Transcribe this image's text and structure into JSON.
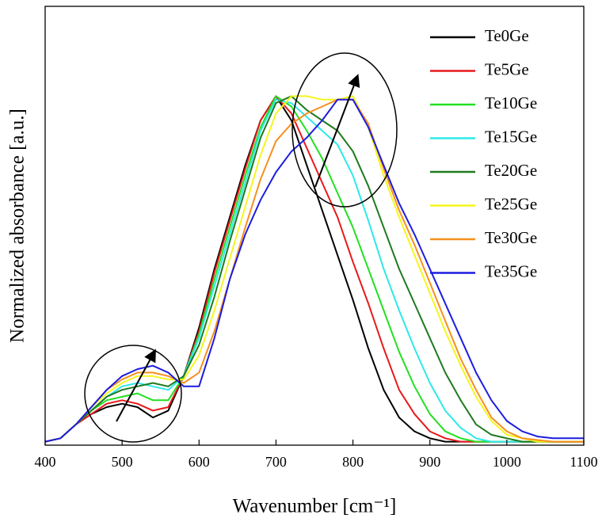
{
  "chart_data": {
    "type": "line",
    "x_label": "Wavenumber [cm⁻¹]",
    "y_label": "Normalized absorbance [a.u.]",
    "x": [
      400,
      420,
      440,
      460,
      480,
      500,
      520,
      540,
      560,
      580,
      600,
      620,
      640,
      660,
      680,
      700,
      720,
      740,
      760,
      780,
      800,
      820,
      840,
      860,
      880,
      900,
      920,
      940,
      960,
      980,
      1000,
      1020,
      1040,
      1060,
      1080,
      1100
    ],
    "series": [
      {
        "name": "Te0Ge",
        "color": "#000000",
        "values": [
          0,
          0.01,
          0.05,
          0.08,
          0.1,
          0.11,
          0.1,
          0.07,
          0.09,
          0.19,
          0.33,
          0.5,
          0.65,
          0.8,
          0.93,
          1.0,
          0.93,
          0.8,
          0.67,
          0.54,
          0.41,
          0.27,
          0.15,
          0.07,
          0.03,
          0.01,
          0,
          0,
          0,
          0,
          0,
          0,
          0,
          0,
          0,
          0
        ]
      },
      {
        "name": "Te5Ge",
        "color": "#e8191b",
        "values": [
          0,
          0.01,
          0.05,
          0.08,
          0.11,
          0.12,
          0.11,
          0.09,
          0.1,
          0.19,
          0.32,
          0.49,
          0.64,
          0.79,
          0.93,
          1.0,
          0.95,
          0.85,
          0.75,
          0.65,
          0.52,
          0.4,
          0.27,
          0.15,
          0.08,
          0.03,
          0.01,
          0,
          0,
          0,
          0,
          0,
          0,
          0,
          0,
          0
        ]
      },
      {
        "name": "Te10Ge",
        "color": "#22e022",
        "values": [
          0,
          0.01,
          0.05,
          0.09,
          0.12,
          0.13,
          0.14,
          0.12,
          0.12,
          0.19,
          0.31,
          0.47,
          0.62,
          0.77,
          0.91,
          1.0,
          0.97,
          0.9,
          0.82,
          0.72,
          0.62,
          0.5,
          0.38,
          0.26,
          0.16,
          0.08,
          0.03,
          0.01,
          0,
          0,
          0,
          0,
          0,
          0,
          0,
          0
        ]
      },
      {
        "name": "Te15Ge",
        "color": "#2ee8e8",
        "values": [
          0,
          0.01,
          0.05,
          0.09,
          0.13,
          0.16,
          0.17,
          0.16,
          0.15,
          0.19,
          0.3,
          0.45,
          0.6,
          0.75,
          0.9,
          0.99,
          0.98,
          0.94,
          0.9,
          0.86,
          0.77,
          0.64,
          0.5,
          0.38,
          0.27,
          0.17,
          0.09,
          0.04,
          0.01,
          0,
          0,
          0,
          0,
          0,
          0,
          0
        ]
      },
      {
        "name": "Te20Ge",
        "color": "#1f7a1f",
        "values": [
          0,
          0.01,
          0.05,
          0.09,
          0.13,
          0.15,
          0.16,
          0.17,
          0.16,
          0.19,
          0.28,
          0.42,
          0.58,
          0.73,
          0.88,
          0.98,
          1.0,
          0.96,
          0.93,
          0.9,
          0.84,
          0.74,
          0.62,
          0.5,
          0.4,
          0.3,
          0.2,
          0.12,
          0.05,
          0.02,
          0.01,
          0,
          0,
          0,
          0,
          0
        ]
      },
      {
        "name": "Te25Ge",
        "color": "#f5f51e",
        "values": [
          0,
          0.01,
          0.05,
          0.1,
          0.14,
          0.17,
          0.19,
          0.19,
          0.18,
          0.18,
          0.25,
          0.38,
          0.53,
          0.68,
          0.83,
          0.95,
          1.0,
          1.0,
          0.99,
          0.99,
          1.0,
          0.91,
          0.77,
          0.65,
          0.54,
          0.43,
          0.32,
          0.22,
          0.13,
          0.06,
          0.02,
          0.01,
          0,
          0,
          0,
          0
        ]
      },
      {
        "name": "Te30Ge",
        "color": "#f5901e",
        "values": [
          0,
          0.01,
          0.05,
          0.1,
          0.15,
          0.18,
          0.2,
          0.2,
          0.19,
          0.17,
          0.2,
          0.32,
          0.47,
          0.62,
          0.76,
          0.87,
          0.92,
          0.95,
          0.97,
          0.99,
          0.99,
          0.92,
          0.79,
          0.67,
          0.57,
          0.46,
          0.35,
          0.24,
          0.15,
          0.07,
          0.03,
          0.01,
          0.005,
          0,
          0,
          0
        ]
      },
      {
        "name": "Te35Ge",
        "color": "#1c1ce0",
        "values": [
          0,
          0.01,
          0.05,
          0.1,
          0.15,
          0.19,
          0.21,
          0.22,
          0.2,
          0.16,
          0.16,
          0.3,
          0.47,
          0.6,
          0.7,
          0.78,
          0.84,
          0.88,
          0.93,
          0.99,
          0.99,
          0.91,
          0.8,
          0.69,
          0.6,
          0.5,
          0.4,
          0.3,
          0.2,
          0.12,
          0.06,
          0.03,
          0.015,
          0.01,
          0.01,
          0.01
        ]
      }
    ],
    "xlim": [
      400,
      1100
    ],
    "xticks": [
      400,
      500,
      600,
      700,
      800,
      900,
      1000,
      1100
    ],
    "ylim": [
      -0.01,
      1.26
    ],
    "legend": "upper right"
  }
}
